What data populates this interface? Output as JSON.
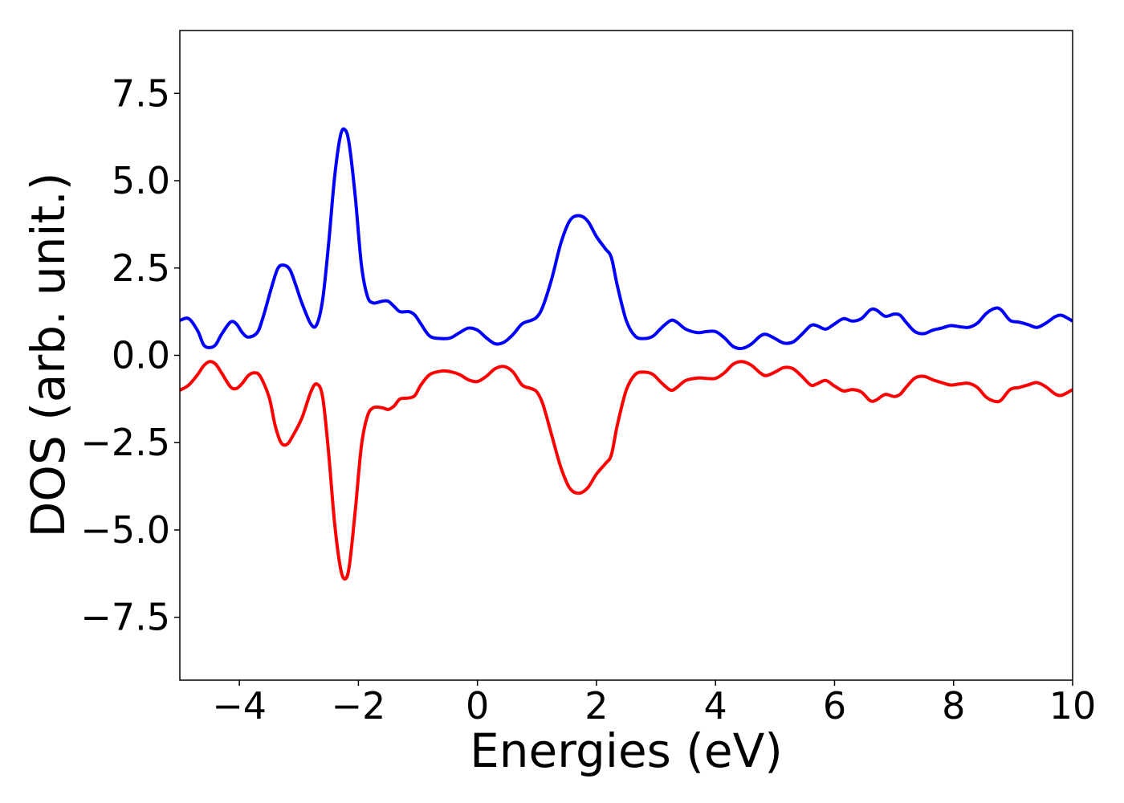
{
  "chart_data": {
    "type": "line",
    "title": "",
    "xlabel": "Energies (eV)",
    "ylabel": "DOS (arb. unit.)",
    "xlim": [
      -5,
      10
    ],
    "ylim": [
      -9.3,
      9.3
    ],
    "grid": false,
    "legend": "none",
    "x_ticks": [
      {
        "value": -4,
        "label": "−4"
      },
      {
        "value": -2,
        "label": "−2"
      },
      {
        "value": 0,
        "label": "0"
      },
      {
        "value": 2,
        "label": "2"
      },
      {
        "value": 4,
        "label": "4"
      },
      {
        "value": 6,
        "label": "6"
      },
      {
        "value": 8,
        "label": "8"
      },
      {
        "value": 10,
        "label": "10"
      }
    ],
    "y_ticks": [
      {
        "value": 7.5,
        "label": "7.5"
      },
      {
        "value": 5.0,
        "label": "5.0"
      },
      {
        "value": 2.5,
        "label": "2.5"
      },
      {
        "value": 0.0,
        "label": "0.0"
      },
      {
        "value": -2.5,
        "label": "−2.5"
      },
      {
        "value": -5.0,
        "label": "−5.0"
      },
      {
        "value": -7.5,
        "label": "−7.5"
      }
    ],
    "series": [
      {
        "color": "#0000ff",
        "points": [
          [
            -5.0,
            1.0
          ],
          [
            -4.85,
            1.05
          ],
          [
            -4.7,
            0.7
          ],
          [
            -4.6,
            0.3
          ],
          [
            -4.5,
            0.22
          ],
          [
            -4.4,
            0.3
          ],
          [
            -4.3,
            0.6
          ],
          [
            -4.15,
            0.95
          ],
          [
            -4.05,
            0.9
          ],
          [
            -3.95,
            0.65
          ],
          [
            -3.85,
            0.52
          ],
          [
            -3.7,
            0.65
          ],
          [
            -3.6,
            1.1
          ],
          [
            -3.45,
            2.0
          ],
          [
            -3.35,
            2.5
          ],
          [
            -3.25,
            2.58
          ],
          [
            -3.15,
            2.45
          ],
          [
            -3.05,
            2.0
          ],
          [
            -2.95,
            1.5
          ],
          [
            -2.8,
            0.9
          ],
          [
            -2.7,
            0.88
          ],
          [
            -2.6,
            1.6
          ],
          [
            -2.5,
            3.2
          ],
          [
            -2.4,
            5.1
          ],
          [
            -2.3,
            6.3
          ],
          [
            -2.22,
            6.45
          ],
          [
            -2.15,
            6.0
          ],
          [
            -2.05,
            4.5
          ],
          [
            -1.95,
            2.6
          ],
          [
            -1.85,
            1.7
          ],
          [
            -1.75,
            1.5
          ],
          [
            -1.6,
            1.55
          ],
          [
            -1.5,
            1.55
          ],
          [
            -1.4,
            1.4
          ],
          [
            -1.3,
            1.25
          ],
          [
            -1.15,
            1.25
          ],
          [
            -1.05,
            1.15
          ],
          [
            -0.95,
            0.9
          ],
          [
            -0.8,
            0.55
          ],
          [
            -0.6,
            0.48
          ],
          [
            -0.45,
            0.5
          ],
          [
            -0.3,
            0.65
          ],
          [
            -0.15,
            0.78
          ],
          [
            0.0,
            0.72
          ],
          [
            0.15,
            0.5
          ],
          [
            0.3,
            0.33
          ],
          [
            0.45,
            0.38
          ],
          [
            0.6,
            0.6
          ],
          [
            0.75,
            0.9
          ],
          [
            0.9,
            1.0
          ],
          [
            1.0,
            1.1
          ],
          [
            1.1,
            1.4
          ],
          [
            1.25,
            2.2
          ],
          [
            1.4,
            3.2
          ],
          [
            1.55,
            3.85
          ],
          [
            1.7,
            4.0
          ],
          [
            1.85,
            3.85
          ],
          [
            2.0,
            3.4
          ],
          [
            2.15,
            3.05
          ],
          [
            2.25,
            2.8
          ],
          [
            2.35,
            2.0
          ],
          [
            2.5,
            1.0
          ],
          [
            2.65,
            0.55
          ],
          [
            2.8,
            0.48
          ],
          [
            2.95,
            0.55
          ],
          [
            3.1,
            0.8
          ],
          [
            3.25,
            1.0
          ],
          [
            3.35,
            0.95
          ],
          [
            3.5,
            0.75
          ],
          [
            3.7,
            0.65
          ],
          [
            3.85,
            0.68
          ],
          [
            4.0,
            0.68
          ],
          [
            4.15,
            0.5
          ],
          [
            4.3,
            0.25
          ],
          [
            4.45,
            0.2
          ],
          [
            4.6,
            0.32
          ],
          [
            4.75,
            0.55
          ],
          [
            4.85,
            0.6
          ],
          [
            5.0,
            0.48
          ],
          [
            5.15,
            0.35
          ],
          [
            5.3,
            0.38
          ],
          [
            5.45,
            0.6
          ],
          [
            5.6,
            0.85
          ],
          [
            5.7,
            0.85
          ],
          [
            5.85,
            0.75
          ],
          [
            6.0,
            0.9
          ],
          [
            6.15,
            1.05
          ],
          [
            6.3,
            0.98
          ],
          [
            6.45,
            1.05
          ],
          [
            6.6,
            1.3
          ],
          [
            6.7,
            1.3
          ],
          [
            6.85,
            1.12
          ],
          [
            7.0,
            1.18
          ],
          [
            7.1,
            1.15
          ],
          [
            7.2,
            0.95
          ],
          [
            7.35,
            0.68
          ],
          [
            7.5,
            0.62
          ],
          [
            7.65,
            0.72
          ],
          [
            7.8,
            0.78
          ],
          [
            7.95,
            0.85
          ],
          [
            8.1,
            0.82
          ],
          [
            8.25,
            0.8
          ],
          [
            8.4,
            0.92
          ],
          [
            8.55,
            1.2
          ],
          [
            8.7,
            1.35
          ],
          [
            8.8,
            1.3
          ],
          [
            8.95,
            1.0
          ],
          [
            9.1,
            0.95
          ],
          [
            9.25,
            0.88
          ],
          [
            9.4,
            0.8
          ],
          [
            9.55,
            0.92
          ],
          [
            9.7,
            1.1
          ],
          [
            9.8,
            1.15
          ],
          [
            9.9,
            1.08
          ],
          [
            10.0,
            0.98
          ]
        ]
      },
      {
        "color": "#ff0000",
        "points": [
          [
            -5.0,
            -1.0
          ],
          [
            -4.85,
            -0.85
          ],
          [
            -4.7,
            -0.55
          ],
          [
            -4.6,
            -0.3
          ],
          [
            -4.5,
            -0.18
          ],
          [
            -4.4,
            -0.25
          ],
          [
            -4.3,
            -0.5
          ],
          [
            -4.15,
            -0.9
          ],
          [
            -4.05,
            -0.95
          ],
          [
            -3.95,
            -0.8
          ],
          [
            -3.85,
            -0.58
          ],
          [
            -3.75,
            -0.5
          ],
          [
            -3.65,
            -0.6
          ],
          [
            -3.5,
            -1.2
          ],
          [
            -3.4,
            -2.0
          ],
          [
            -3.3,
            -2.5
          ],
          [
            -3.2,
            -2.55
          ],
          [
            -3.1,
            -2.3
          ],
          [
            -2.95,
            -1.8
          ],
          [
            -2.8,
            -1.05
          ],
          [
            -2.7,
            -0.82
          ],
          [
            -2.6,
            -1.2
          ],
          [
            -2.5,
            -2.8
          ],
          [
            -2.4,
            -4.8
          ],
          [
            -2.3,
            -6.1
          ],
          [
            -2.22,
            -6.4
          ],
          [
            -2.15,
            -6.0
          ],
          [
            -2.05,
            -4.4
          ],
          [
            -1.95,
            -2.6
          ],
          [
            -1.85,
            -1.75
          ],
          [
            -1.75,
            -1.5
          ],
          [
            -1.6,
            -1.5
          ],
          [
            -1.5,
            -1.55
          ],
          [
            -1.4,
            -1.45
          ],
          [
            -1.3,
            -1.25
          ],
          [
            -1.15,
            -1.22
          ],
          [
            -1.05,
            -1.15
          ],
          [
            -0.95,
            -0.85
          ],
          [
            -0.8,
            -0.55
          ],
          [
            -0.6,
            -0.45
          ],
          [
            -0.45,
            -0.47
          ],
          [
            -0.3,
            -0.55
          ],
          [
            -0.15,
            -0.7
          ],
          [
            0.0,
            -0.75
          ],
          [
            0.15,
            -0.6
          ],
          [
            0.3,
            -0.38
          ],
          [
            0.45,
            -0.32
          ],
          [
            0.6,
            -0.48
          ],
          [
            0.75,
            -0.85
          ],
          [
            0.9,
            -0.95
          ],
          [
            1.0,
            -1.05
          ],
          [
            1.1,
            -1.4
          ],
          [
            1.25,
            -2.3
          ],
          [
            1.4,
            -3.2
          ],
          [
            1.55,
            -3.8
          ],
          [
            1.7,
            -3.95
          ],
          [
            1.85,
            -3.8
          ],
          [
            2.0,
            -3.4
          ],
          [
            2.15,
            -3.1
          ],
          [
            2.25,
            -2.85
          ],
          [
            2.35,
            -2.0
          ],
          [
            2.5,
            -1.0
          ],
          [
            2.65,
            -0.55
          ],
          [
            2.8,
            -0.48
          ],
          [
            2.95,
            -0.55
          ],
          [
            3.1,
            -0.8
          ],
          [
            3.25,
            -1.0
          ],
          [
            3.35,
            -0.92
          ],
          [
            3.5,
            -0.72
          ],
          [
            3.7,
            -0.65
          ],
          [
            3.85,
            -0.66
          ],
          [
            4.0,
            -0.66
          ],
          [
            4.15,
            -0.5
          ],
          [
            4.3,
            -0.25
          ],
          [
            4.45,
            -0.18
          ],
          [
            4.6,
            -0.28
          ],
          [
            4.75,
            -0.5
          ],
          [
            4.85,
            -0.58
          ],
          [
            5.0,
            -0.48
          ],
          [
            5.15,
            -0.35
          ],
          [
            5.3,
            -0.38
          ],
          [
            5.45,
            -0.6
          ],
          [
            5.6,
            -0.85
          ],
          [
            5.7,
            -0.82
          ],
          [
            5.85,
            -0.72
          ],
          [
            6.0,
            -0.88
          ],
          [
            6.15,
            -1.02
          ],
          [
            6.3,
            -0.98
          ],
          [
            6.45,
            -1.05
          ],
          [
            6.6,
            -1.3
          ],
          [
            6.7,
            -1.28
          ],
          [
            6.85,
            -1.12
          ],
          [
            7.0,
            -1.18
          ],
          [
            7.1,
            -1.12
          ],
          [
            7.2,
            -0.92
          ],
          [
            7.35,
            -0.65
          ],
          [
            7.5,
            -0.6
          ],
          [
            7.65,
            -0.7
          ],
          [
            7.8,
            -0.78
          ],
          [
            7.95,
            -0.85
          ],
          [
            8.1,
            -0.82
          ],
          [
            8.25,
            -0.8
          ],
          [
            8.4,
            -0.92
          ],
          [
            8.55,
            -1.2
          ],
          [
            8.7,
            -1.32
          ],
          [
            8.8,
            -1.28
          ],
          [
            8.95,
            -0.98
          ],
          [
            9.1,
            -0.92
          ],
          [
            9.25,
            -0.85
          ],
          [
            9.4,
            -0.78
          ],
          [
            9.55,
            -0.9
          ],
          [
            9.7,
            -1.1
          ],
          [
            9.8,
            -1.15
          ],
          [
            9.9,
            -1.08
          ],
          [
            10.0,
            -0.98
          ]
        ]
      }
    ]
  }
}
